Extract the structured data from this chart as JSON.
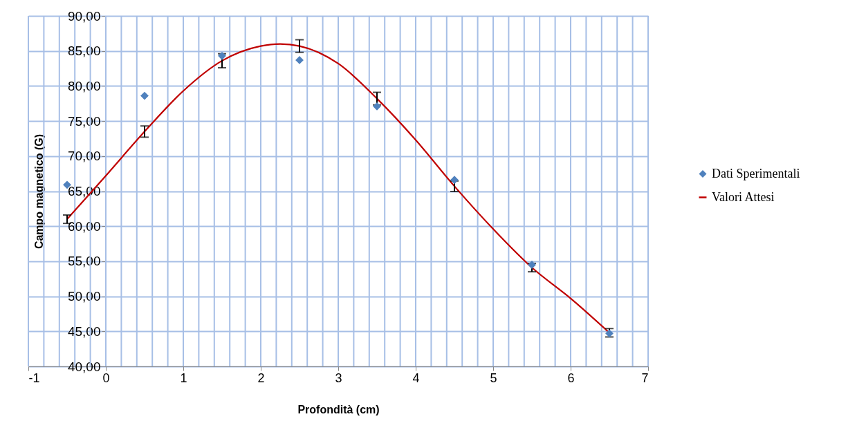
{
  "chart_data": {
    "type": "scatter",
    "xlabel": "Profondità (cm)",
    "ylabel": "Campo magnetico (G)",
    "xlim": [
      -1,
      7
    ],
    "xticks": [
      -1,
      0,
      1,
      2,
      3,
      4,
      5,
      6,
      7
    ],
    "ylim": [
      40,
      90
    ],
    "yticks": [
      {
        "value": 40,
        "label": "40,00"
      },
      {
        "value": 45,
        "label": "45,00"
      },
      {
        "value": 50,
        "label": "50,00"
      },
      {
        "value": 55,
        "label": "55,00"
      },
      {
        "value": 60,
        "label": "60,00"
      },
      {
        "value": 65,
        "label": "65,00"
      },
      {
        "value": 70,
        "label": "70,00"
      },
      {
        "value": 75,
        "label": "75,00"
      },
      {
        "value": 80,
        "label": "80,00"
      },
      {
        "value": 85,
        "label": "85,00"
      },
      {
        "value": 90,
        "label": "90,00"
      }
    ],
    "grid": true,
    "legend": "right",
    "series": [
      {
        "name": "Dati Sperimentali",
        "marker": "diamond",
        "color": "#4f81bd",
        "x": [
          -0.5,
          0.5,
          1.5,
          2.5,
          3.5,
          4.5,
          5.5,
          6.5
        ],
        "values": [
          65.9,
          78.6,
          84.3,
          83.7,
          77.1,
          66.6,
          54.5,
          44.7
        ]
      },
      {
        "name": "Valori Attesi",
        "type": "line",
        "color": "#c00000",
        "line_style": "solid",
        "x": [
          -0.5,
          0,
          0.5,
          1,
          1.5,
          2,
          2.25,
          2.5,
          3,
          3.5,
          4,
          4.5,
          5,
          5.5,
          6,
          6.5
        ],
        "values": [
          61.0,
          67.2,
          73.5,
          79.3,
          83.6,
          85.7,
          86.0,
          85.7,
          83.2,
          78.2,
          72.3,
          65.7,
          59.6,
          54.1,
          49.7,
          44.8
        ],
        "errors": [
          0.6,
          null,
          0.8,
          null,
          1.0,
          null,
          null,
          0.9,
          null,
          0.9,
          null,
          0.75,
          null,
          0.6,
          null,
          0.6
        ]
      }
    ]
  }
}
